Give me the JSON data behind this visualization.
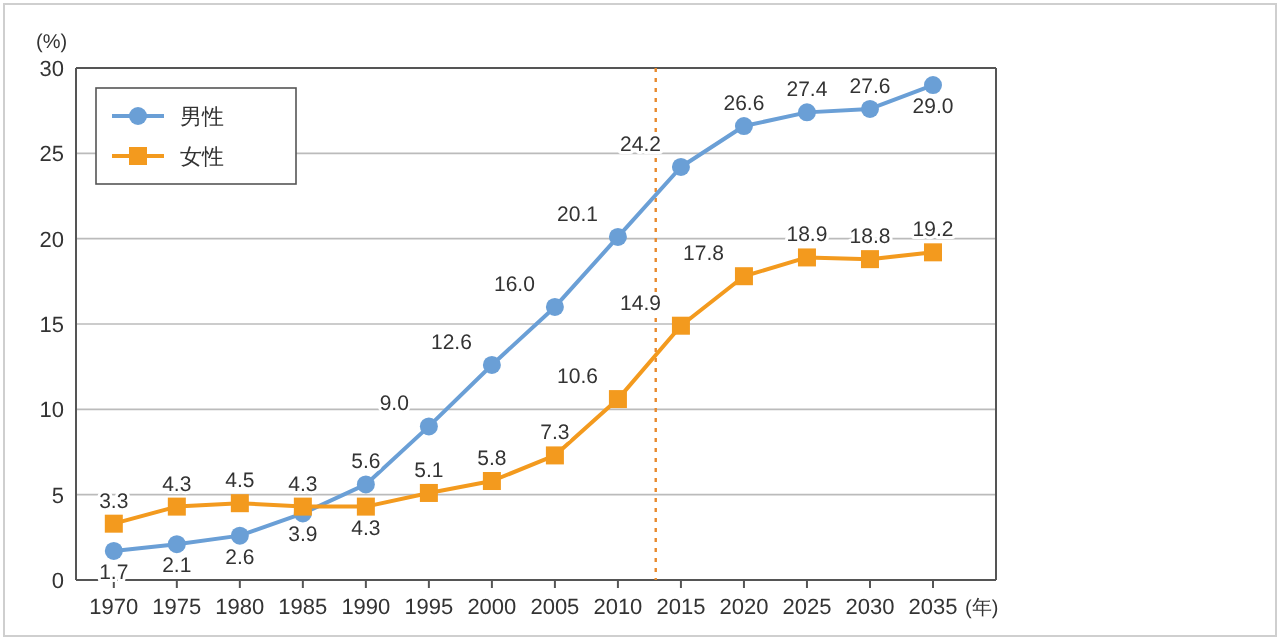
{
  "chart_data": {
    "type": "line",
    "ylabel": "(%)",
    "xlabel": "(年)",
    "x": [
      1970,
      1975,
      1980,
      1985,
      1990,
      1995,
      2000,
      2005,
      2010,
      2015,
      2020,
      2025,
      2030,
      2035
    ],
    "xlim": [
      1967,
      2040
    ],
    "xticks": [
      1970,
      1975,
      1980,
      1985,
      1990,
      1995,
      2000,
      2005,
      2010,
      2015,
      2020,
      2025,
      2030,
      2035
    ],
    "ylim": [
      0,
      30
    ],
    "yticks": [
      0,
      5,
      10,
      15,
      20,
      25,
      30
    ],
    "grid": "y",
    "legend": "top left",
    "line_style": "solid",
    "series": [
      {
        "name": "男性",
        "color": "#6a9fd6",
        "marker": "circle",
        "values": [
          1.7,
          2.1,
          2.6,
          3.9,
          5.6,
          9.0,
          12.6,
          16.0,
          20.1,
          24.2,
          26.6,
          27.4,
          27.6,
          29.0
        ],
        "value_labels": [
          "1.7",
          "2.1",
          "2.6",
          "3.9",
          "5.6",
          "9.0",
          "12.6",
          "16.0",
          "20.1",
          "24.2",
          "26.6",
          "27.4",
          "27.6",
          "29.0"
        ]
      },
      {
        "name": "女性",
        "color": "#f39a1e",
        "marker": "square",
        "values": [
          3.3,
          4.3,
          4.5,
          4.3,
          4.3,
          5.1,
          5.8,
          7.3,
          10.6,
          14.9,
          17.8,
          18.9,
          18.8,
          19.2
        ],
        "value_labels": [
          "3.3",
          "4.3",
          "4.5",
          "4.3",
          "4.3",
          "5.1",
          "5.8",
          "7.3",
          "10.6",
          "14.9",
          "17.8",
          "18.9",
          "18.8",
          "19.2"
        ]
      }
    ],
    "ref_lines": [
      {
        "axis": "x",
        "value": 2013,
        "color": "#e8892c",
        "line_style": "dotted"
      }
    ]
  }
}
